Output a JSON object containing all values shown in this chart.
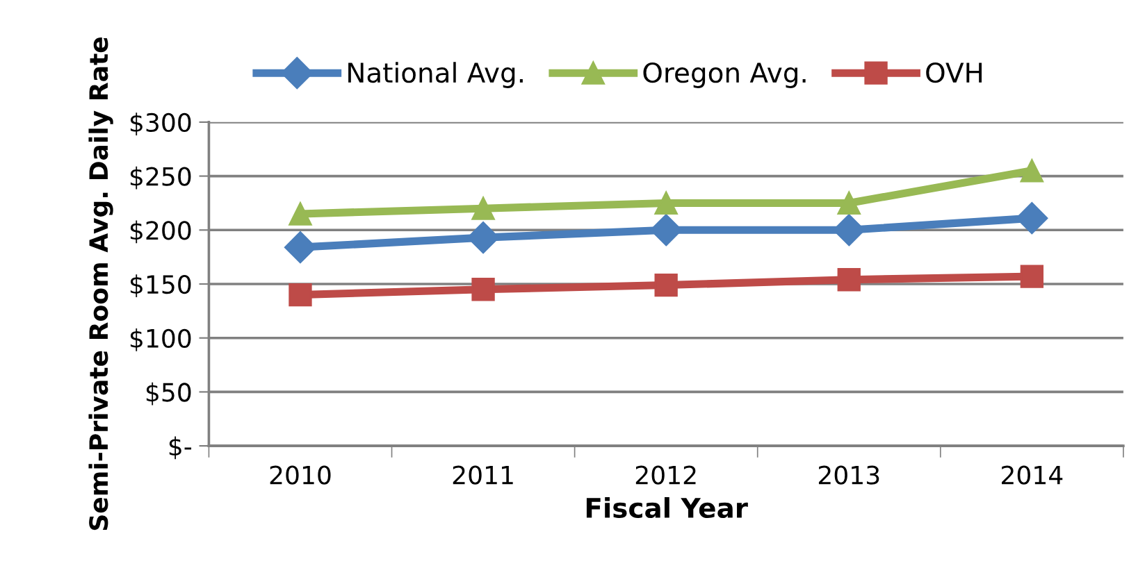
{
  "chart_data": {
    "type": "line",
    "xlabel": "Fiscal Year",
    "ylabel": "Semi-Private Room Avg. Daily Rate",
    "categories": [
      "2010",
      "2011",
      "2012",
      "2013",
      "2014"
    ],
    "series": [
      {
        "name": "National Avg.",
        "color": "#4a7ebb",
        "marker": "diamond",
        "values": [
          184,
          193,
          200,
          200,
          211
        ]
      },
      {
        "name": "Oregon Avg.",
        "color": "#98b954",
        "marker": "triangle",
        "values": [
          215,
          220,
          225,
          225,
          255
        ]
      },
      {
        "name": "OVH",
        "color": "#be4b48",
        "marker": "square",
        "values": [
          140,
          145,
          149,
          154,
          157
        ]
      }
    ],
    "ylim": [
      0,
      300
    ],
    "yticks": [
      {
        "value": 0,
        "label": "$-"
      },
      {
        "value": 50,
        "label": "$50"
      },
      {
        "value": 100,
        "label": "$100"
      },
      {
        "value": 150,
        "label": "$150"
      },
      {
        "value": 200,
        "label": "$200"
      },
      {
        "value": 250,
        "label": "$250"
      },
      {
        "value": 300,
        "label": "$300"
      }
    ],
    "grid": "y",
    "legend": "top",
    "line_style": "solid"
  }
}
